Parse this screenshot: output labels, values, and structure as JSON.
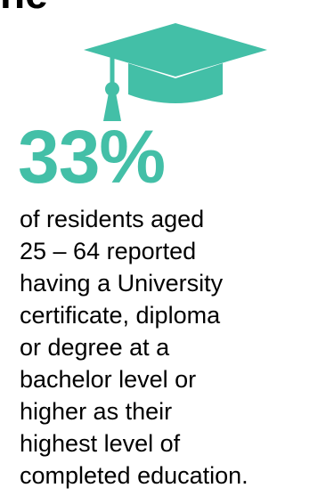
{
  "top_fragment": "ne",
  "icon": {
    "name": "graduation-cap-icon",
    "color": "#43bfa7"
  },
  "stat": {
    "value": "33%",
    "color": "#43bfa7"
  },
  "description_lines": [
    "of residents aged",
    "25 – 64 reported",
    "having a University",
    "certificate, diploma",
    "or degree at a",
    "bachelor level or",
    "higher as their",
    "highest level of",
    "completed education."
  ]
}
